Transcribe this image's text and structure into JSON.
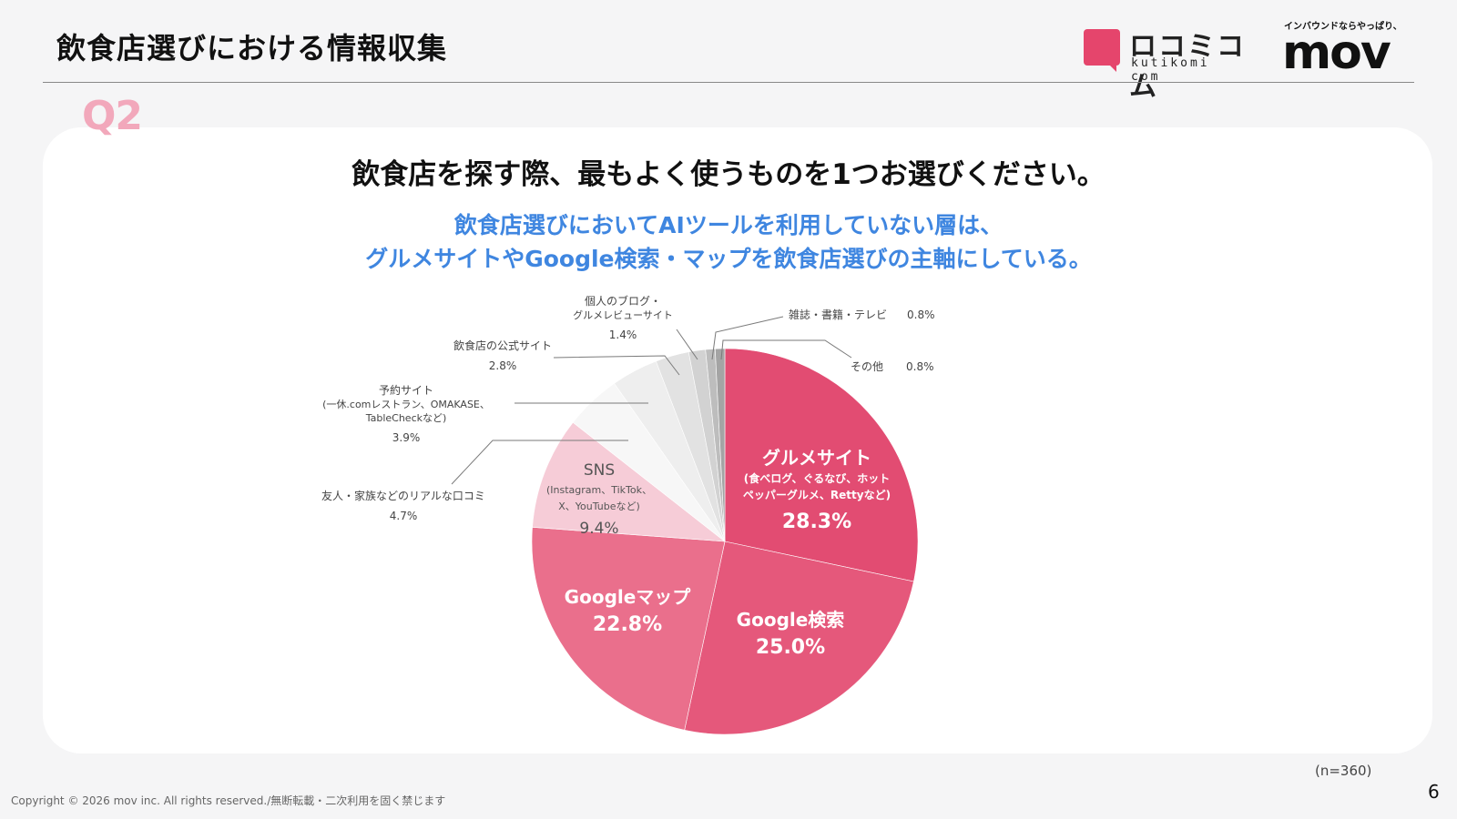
{
  "header": {
    "title": "飲食店選びにおける情報収集",
    "logo_kutikomi_jp": "ロコミコム",
    "logo_kutikomi_en": "kutikomi com",
    "logo_mov_tagline": "インバウンドならやっぱり、",
    "logo_mov_word": "mov"
  },
  "question_label": "Q2",
  "question": "飲食店を探す際、最もよく使うものを1つお選びください。",
  "insight": {
    "line1": "飲食店選びにおいてAIツールを利用していない層は、",
    "line2": "グルメサイトやGoogle検索・マップを飲食店選びの主軸にしている。"
  },
  "chart_data": {
    "type": "pie",
    "start": "12 o'clock, clockwise",
    "slices": [
      {
        "label": "グルメサイト",
        "sublabel": [
          "(食べログ、ぐるなび、ホット",
          "ペッパーグルメ、Rettyなど)"
        ],
        "value": 28.3,
        "value_label": "28.3%",
        "color": "#e24c72",
        "label_position": "inside"
      },
      {
        "label": "Google検索",
        "value": 25.0,
        "value_label": "25.0%",
        "color": "#e5587b",
        "label_position": "inside"
      },
      {
        "label": "Googleマップ",
        "value": 22.8,
        "value_label": "22.8%",
        "color": "#ea6f8c",
        "label_position": "inside"
      },
      {
        "label": "SNS",
        "sublabel": [
          "(Instagram、TikTok、",
          "X、YouTubeなど)"
        ],
        "value": 9.4,
        "value_label": "9.4%",
        "color": "#f6ccd7",
        "label_position": "inside"
      },
      {
        "label": "友人・家族などのリアルな口コミ",
        "value": 4.7,
        "value_label": "4.7%",
        "color": "#f7f7f7",
        "label_position": "outside"
      },
      {
        "label": "予約サイト",
        "sublabel": [
          "(一休.comレストラン、OMAKASE、",
          "TableCheckなど)"
        ],
        "value": 3.9,
        "value_label": "3.9%",
        "color": "#eeeeee",
        "label_position": "outside"
      },
      {
        "label": "飲食店の公式サイト",
        "value": 2.8,
        "value_label": "2.8%",
        "color": "#e2e2e2",
        "label_position": "outside"
      },
      {
        "label": "個人のブログ・",
        "sublabel": [
          "グルメレビューサイト"
        ],
        "value": 1.4,
        "value_label": "1.4%",
        "color": "#d2d2d2",
        "label_position": "outside"
      },
      {
        "label": "雑誌・書籍・テレビ",
        "value": 0.8,
        "value_label": "0.8%",
        "color": "#bdbdbd",
        "label_position": "outside"
      },
      {
        "label": "その他",
        "value": 0.8,
        "value_label": "0.8%",
        "color": "#a4a4a4",
        "label_position": "outside"
      }
    ],
    "n_note": "(n=360)"
  },
  "footer": {
    "page_number": "6",
    "copyright": "Copyright © 2026 mov inc. All rights reserved./無断転載・二次利用を固く禁じます"
  }
}
